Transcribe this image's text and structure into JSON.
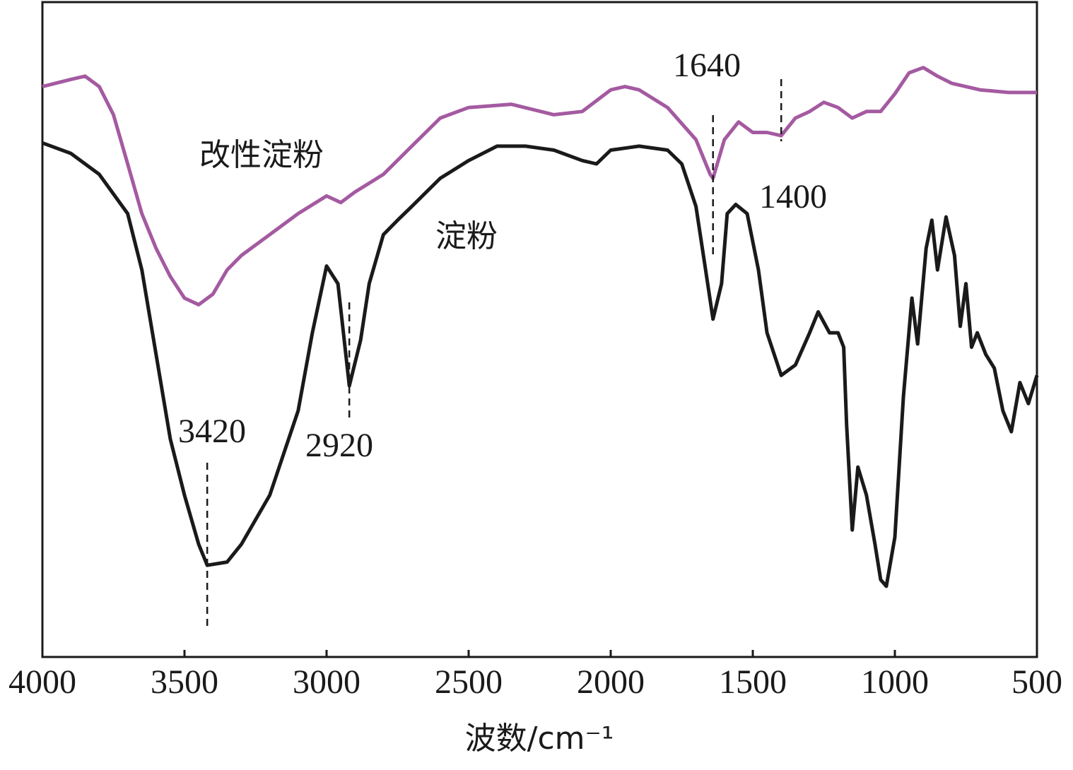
{
  "chart_data": {
    "type": "line",
    "xlabel": "波数/cm⁻¹",
    "xlim": [
      4000,
      500
    ],
    "xticks": [
      4000,
      3500,
      3000,
      2500,
      2000,
      1500,
      1000,
      500
    ],
    "ylim": [
      0,
      100
    ],
    "series": [
      {
        "name": "改性淀粉",
        "color": "#a45aa0",
        "x": [
          4000,
          3900,
          3850,
          3800,
          3750,
          3700,
          3650,
          3600,
          3550,
          3500,
          3450,
          3400,
          3350,
          3300,
          3200,
          3100,
          3000,
          2950,
          2900,
          2800,
          2700,
          2600,
          2500,
          2350,
          2200,
          2100,
          2000,
          1950,
          1900,
          1800,
          1700,
          1650,
          1640,
          1600,
          1550,
          1500,
          1450,
          1400,
          1350,
          1300,
          1250,
          1200,
          1150,
          1100,
          1050,
          1000,
          950,
          900,
          850,
          800,
          700,
          600,
          500
        ],
        "values": [
          87.1,
          88.2,
          88.7,
          87.1,
          82.8,
          75.3,
          67.7,
          62.4,
          58.1,
          54.8,
          53.8,
          55.4,
          59.1,
          61.3,
          64.5,
          67.7,
          70.4,
          69.4,
          71.0,
          73.7,
          78.0,
          82.3,
          83.9,
          84.4,
          82.8,
          83.3,
          86.6,
          87.1,
          86.6,
          83.9,
          79.0,
          73.7,
          73.1,
          79.0,
          81.7,
          80.1,
          80.1,
          79.6,
          82.3,
          83.3,
          84.7,
          83.9,
          82.3,
          83.3,
          83.3,
          86.0,
          89.2,
          90.0,
          88.7,
          87.6,
          86.6,
          86.2,
          86.2
        ]
      },
      {
        "name": "淀粉",
        "color": "#1a1a1a",
        "x": [
          4000,
          3900,
          3800,
          3700,
          3650,
          3600,
          3550,
          3500,
          3450,
          3420,
          3350,
          3300,
          3200,
          3100,
          3050,
          3000,
          2960,
          2920,
          2880,
          2850,
          2800,
          2750,
          2700,
          2600,
          2500,
          2400,
          2300,
          2200,
          2100,
          2050,
          2000,
          1900,
          1800,
          1750,
          1700,
          1670,
          1640,
          1610,
          1590,
          1560,
          1520,
          1480,
          1450,
          1400,
          1350,
          1300,
          1270,
          1230,
          1200,
          1180,
          1170,
          1150,
          1130,
          1100,
          1070,
          1050,
          1030,
          1000,
          970,
          940,
          920,
          890,
          870,
          850,
          820,
          790,
          770,
          750,
          730,
          710,
          680,
          650,
          620,
          590,
          560,
          530,
          500
        ],
        "values": [
          78.5,
          76.9,
          73.7,
          67.7,
          59.1,
          46.2,
          33.3,
          24.7,
          17.2,
          14.0,
          14.5,
          17.2,
          24.7,
          37.6,
          49.5,
          59.7,
          57.0,
          41.4,
          48.4,
          57.0,
          64.5,
          66.7,
          68.8,
          73.1,
          75.8,
          78.0,
          78.0,
          77.4,
          75.8,
          75.3,
          77.4,
          78.0,
          77.4,
          75.3,
          68.8,
          60.2,
          51.6,
          57.0,
          67.7,
          69.1,
          67.7,
          59.1,
          49.5,
          43.0,
          44.6,
          49.5,
          52.7,
          49.5,
          49.5,
          47.3,
          35.5,
          19.4,
          29.0,
          24.7,
          17.2,
          11.8,
          10.8,
          18.3,
          39.8,
          54.8,
          47.8,
          62.4,
          66.7,
          59.1,
          67.2,
          61.3,
          50.5,
          57.0,
          47.3,
          49.5,
          46.2,
          44.1,
          37.6,
          34.4,
          41.9,
          38.7,
          43.0
        ]
      }
    ],
    "peak_labels": [
      {
        "value": 3420,
        "label": "3420"
      },
      {
        "value": 2920,
        "label": "2920"
      },
      {
        "value": 1640,
        "label": "1640"
      },
      {
        "value": 1400,
        "label": "1400"
      }
    ]
  }
}
